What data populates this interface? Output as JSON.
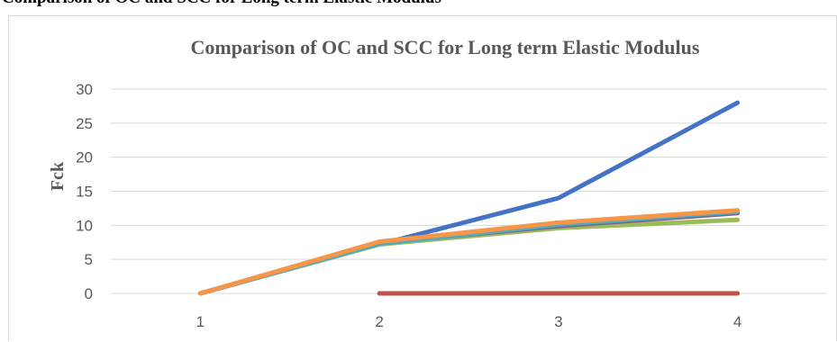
{
  "document": {
    "heading": "Comparison of OC and SCC for Long term Elastic Modulus"
  },
  "chart_data": {
    "type": "line",
    "title": "Comparison of OC and SCC for Long term Elastic Modulus",
    "xlabel": "",
    "ylabel": "Fck",
    "categories": [
      "1",
      "2",
      "3",
      "4"
    ],
    "ylim": [
      0,
      30
    ],
    "yticks": [
      0,
      5,
      10,
      15,
      20,
      25,
      30
    ],
    "grid": true,
    "legend": "none",
    "series": [
      {
        "color": "#4472c4",
        "values": [
          0,
          7.2,
          14.0,
          28.0
        ]
      },
      {
        "color": "#c0504d",
        "values": [
          null,
          0,
          0,
          0
        ]
      },
      {
        "color": "#9bbb59",
        "values": [
          0,
          7.2,
          9.6,
          10.8
        ]
      },
      {
        "color": "#7f6084",
        "values": [
          0,
          7.4,
          9.9,
          11.8
        ]
      },
      {
        "color": "#4bacc6",
        "values": [
          0,
          7.3,
          10.1,
          12.0
        ]
      },
      {
        "color": "#f79646",
        "values": [
          0,
          7.6,
          10.4,
          12.2
        ]
      }
    ]
  }
}
